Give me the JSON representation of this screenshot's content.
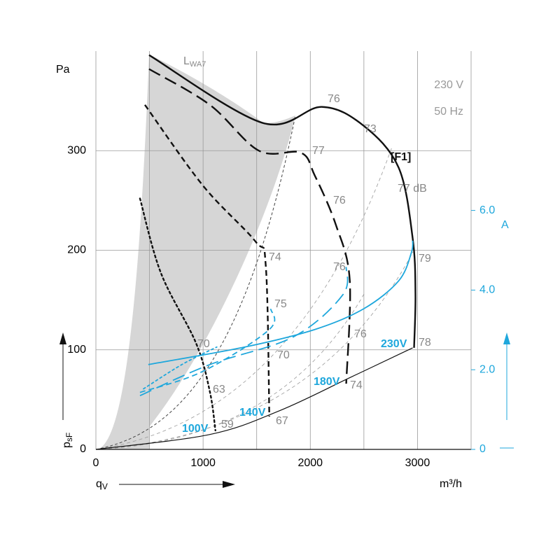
{
  "chart_data": {
    "type": "line",
    "title": [
      "230 V",
      "50 Hz"
    ],
    "ylabel": "Pa",
    "y_axis_name": {
      "text": "p",
      "sub": "sF"
    },
    "x_axis_name": {
      "text": "q",
      "sub": "V"
    },
    "xlabel": "m³/h",
    "y2label": "A",
    "xlim": [
      0,
      3500
    ],
    "xticks": [
      0,
      1000,
      2000,
      3000
    ],
    "xgrid": [
      500,
      1500,
      2500
    ],
    "ylim": [
      0,
      400
    ],
    "yticks": [
      0,
      100,
      200,
      300
    ],
    "y2lim": [
      0,
      10
    ],
    "y2ticks": [
      0,
      {
        "value": 2,
        "label": "2.0"
      },
      {
        "value": 4,
        "label": "4.0"
      },
      {
        "value": 6,
        "label": "6.0"
      }
    ],
    "grid": true,
    "series": [
      {
        "name": "230V",
        "color": "#111111",
        "dash": "solid",
        "width": 2.4,
        "x": [
          496,
          1552,
          2107,
          2498,
          2824,
          2955,
          2981,
          2968
        ],
        "values": [
          396,
          328,
          344,
          325,
          283,
          212,
          156,
          102
        ]
      },
      {
        "name": "180V",
        "color": "#111111",
        "dash": "long",
        "width": 2.4,
        "x": [
          496,
          1063,
          1520,
          1911,
          2042,
          2237,
          2368,
          2335
        ],
        "values": [
          382,
          346,
          300,
          298,
          275,
          226,
          170,
          66
        ]
      },
      {
        "name": "140V",
        "color": "#111111",
        "dash": "short",
        "width": 2.4,
        "x": [
          457,
          998,
          1487,
          1585,
          1618
        ],
        "values": [
          346,
          265,
          209,
          184,
          33
        ]
      },
      {
        "name": "100V",
        "color": "#111111",
        "dash": "dot",
        "width": 2.4,
        "x": [
          411,
          607,
          933,
          1063,
          1115
        ],
        "values": [
          252,
          177,
          107,
          58,
          19
        ]
      },
      {
        "color": "#111111",
        "dash": "solid",
        "width": 1.2,
        "x": [
          0,
          1063,
          1716,
          2368,
          2955
        ],
        "values": [
          0,
          15,
          39,
          72,
          102
        ]
      },
      {
        "color": "#1ea7dc",
        "dash": "solid",
        "width": 1.8,
        "axis": "y2",
        "x": [
          489,
          1389,
          2042,
          2498,
          2824,
          2942,
          2955
        ],
        "values": [
          2.13,
          2.57,
          3.01,
          3.53,
          4.23,
          4.93,
          5.24
        ]
      },
      {
        "color": "#1ea7dc",
        "dash": "long",
        "width": 1.8,
        "axis": "y2",
        "x": [
          411,
          1063,
          1846,
          2303,
          2335
        ],
        "values": [
          1.35,
          2.13,
          2.83,
          3.88,
          4.58
        ]
      },
      {
        "color": "#1ea7dc",
        "dash": "short",
        "width": 1.8,
        "axis": "y2",
        "x": [
          411,
          998,
          1618,
          1631
        ],
        "values": [
          1.43,
          1.96,
          3.01,
          3.53
        ]
      },
      {
        "color": "#1ea7dc",
        "dash": "dot",
        "width": 1.8,
        "axis": "y2",
        "x": [
          444,
          802,
          1128
        ],
        "values": [
          1.52,
          2.13,
          2.57
        ]
      }
    ],
    "annotations": [
      "76",
      "73",
      "[F1]",
      "77 dB",
      "77",
      "76",
      "74",
      "76",
      "79",
      "75",
      "70",
      "76",
      "70",
      "78",
      "63",
      "74",
      "59",
      "67",
      "230V",
      "180V",
      "140V",
      "100V"
    ],
    "region_label": {
      "text": "L",
      "sub": "WA7"
    }
  }
}
